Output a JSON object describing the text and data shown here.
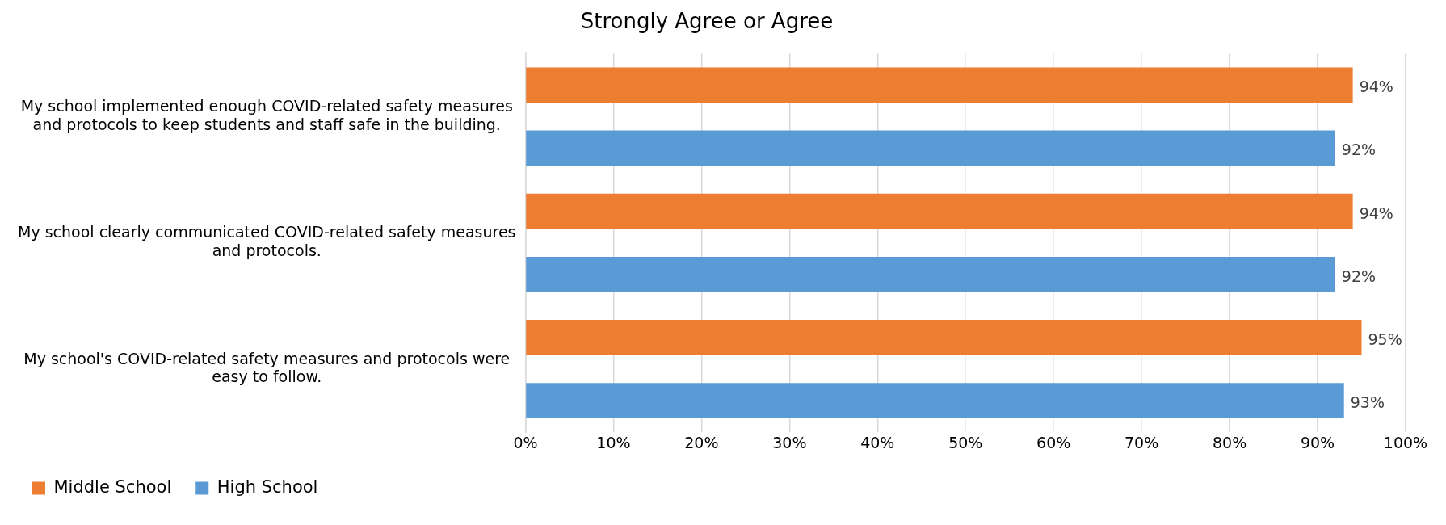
{
  "chart_data": {
    "type": "bar",
    "orientation": "horizontal",
    "title": "Strongly Agree or Agree",
    "categories": [
      "My school implemented enough COVID-related safety measures and protocols to keep students and staff safe in the building.",
      "My school clearly communicated COVID-related safety measures and protocols.",
      "My school's COVID-related safety measures and protocols were easy to follow."
    ],
    "series": [
      {
        "name": "Middle School",
        "color": "#ed7d31",
        "values": [
          94,
          94,
          95
        ],
        "value_labels": [
          "94%",
          "94%",
          "95%"
        ]
      },
      {
        "name": "High School",
        "color": "#5b9bd5",
        "values": [
          92,
          92,
          93
        ],
        "value_labels": [
          "92%",
          "92%",
          "93%"
        ]
      }
    ],
    "xlim": [
      0,
      100
    ],
    "xticks": [
      {
        "value": 0,
        "label": "0%"
      },
      {
        "value": 10,
        "label": "10%"
      },
      {
        "value": 20,
        "label": "20%"
      },
      {
        "value": 30,
        "label": "30%"
      },
      {
        "value": 40,
        "label": "40%"
      },
      {
        "value": 50,
        "label": "50%"
      },
      {
        "value": 60,
        "label": "60%"
      },
      {
        "value": 70,
        "label": "70%"
      },
      {
        "value": 80,
        "label": "80%"
      },
      {
        "value": 90,
        "label": "90%"
      },
      {
        "value": 100,
        "label": "100%"
      }
    ],
    "grid": "x",
    "legend": "bottom left"
  }
}
